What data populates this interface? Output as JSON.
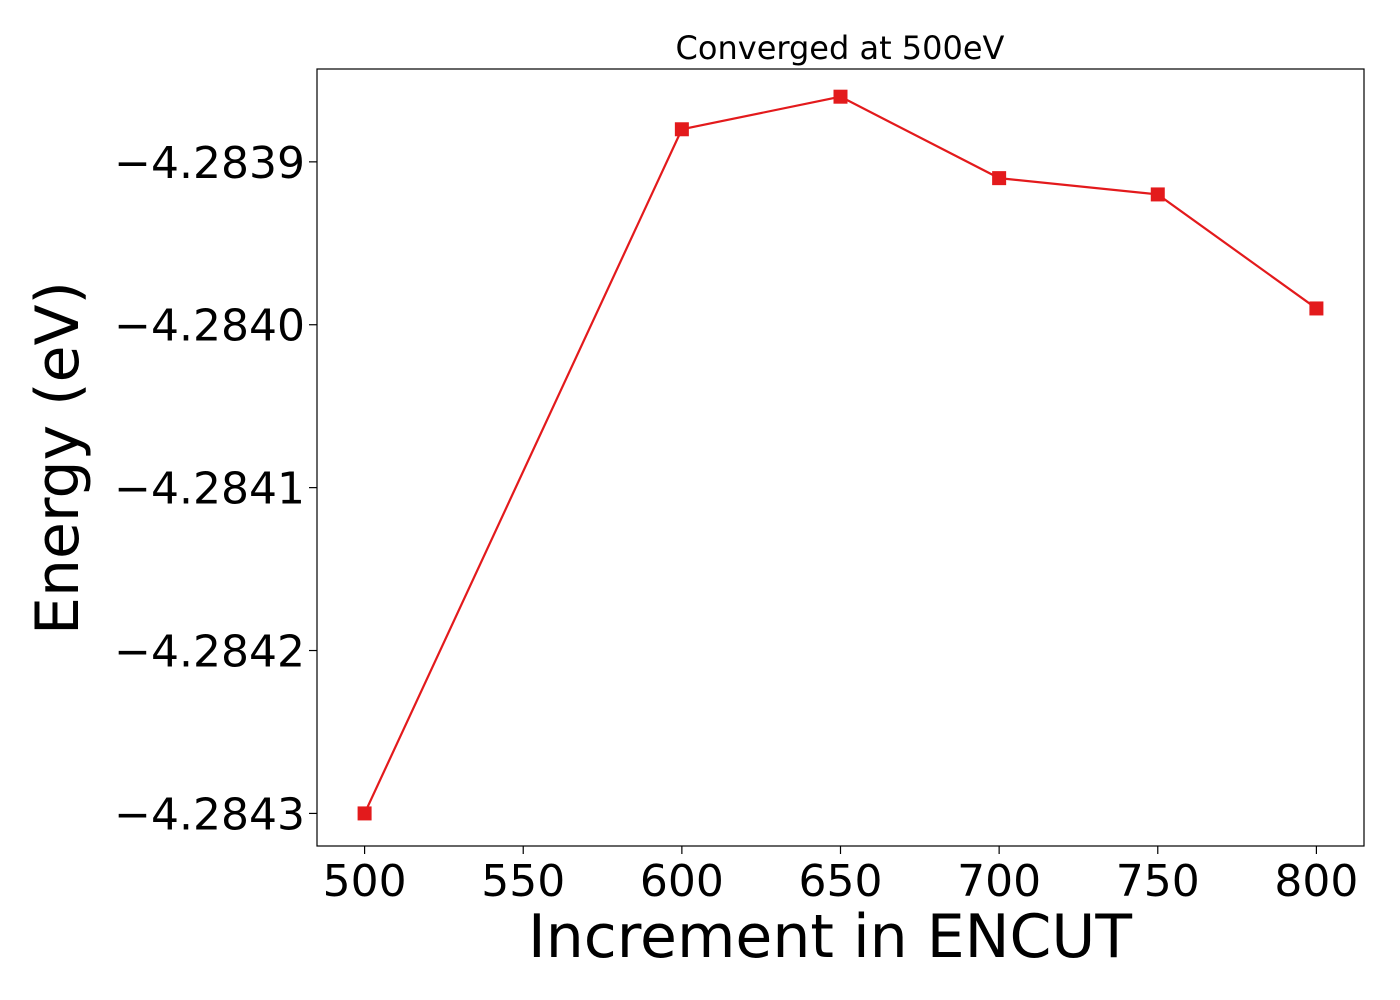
{
  "chart_data": {
    "type": "line",
    "title": "Converged at 500eV",
    "xlabel": "Increment in ENCUT",
    "ylabel": "Energy (eV)",
    "x": [
      500,
      600,
      650,
      700,
      750,
      800
    ],
    "series": [
      {
        "values": [
          -4.2843,
          -4.28388,
          -4.28386,
          -4.28391,
          -4.28392,
          -4.28399
        ]
      }
    ],
    "xlim": [
      485,
      815
    ],
    "ylim": [
      -4.28432,
      -4.283843
    ],
    "x_ticks": [
      500,
      550,
      600,
      650,
      700,
      750,
      800
    ],
    "x_tick_labels": [
      "500",
      "550",
      "600",
      "650",
      "700",
      "750",
      "800"
    ],
    "y_ticks": [
      -4.2843,
      -4.2842,
      -4.2841,
      -4.284,
      -4.2839
    ],
    "y_tick_labels": [
      "−4.2843",
      "−4.2842",
      "−4.2841",
      "−4.2840",
      "−4.2839"
    ],
    "marker": "square",
    "line_color": "#e31a1c",
    "grid": false,
    "legend": false
  }
}
